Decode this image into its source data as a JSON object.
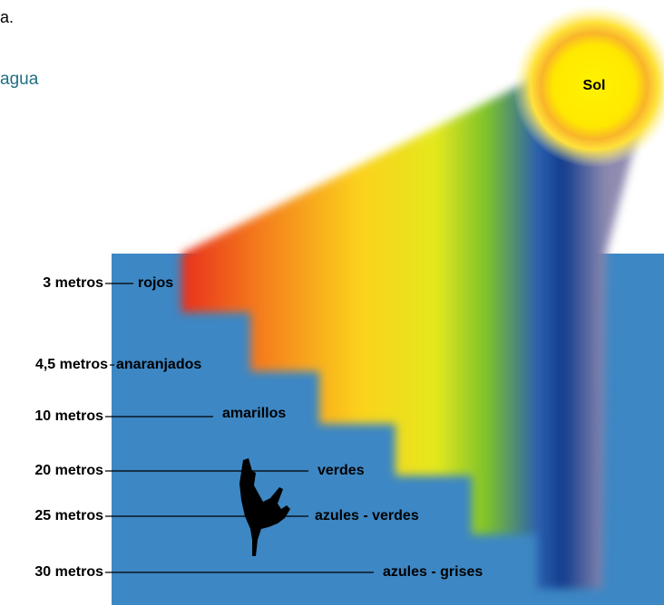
{
  "fragments": [
    "a.",
    "agua"
  ],
  "sun": "Sol",
  "levels": [
    {
      "depth": "3 metros",
      "color": "rojos"
    },
    {
      "depth": "4,5 metros",
      "color": "anaranjados"
    },
    {
      "depth": "10 metros",
      "color": "amarillos"
    },
    {
      "depth": "20 metros",
      "color": "verdes"
    },
    {
      "depth": "25 metros",
      "color": "azules - verdes"
    },
    {
      "depth": "30 metros",
      "color": "azules - grises"
    }
  ]
}
